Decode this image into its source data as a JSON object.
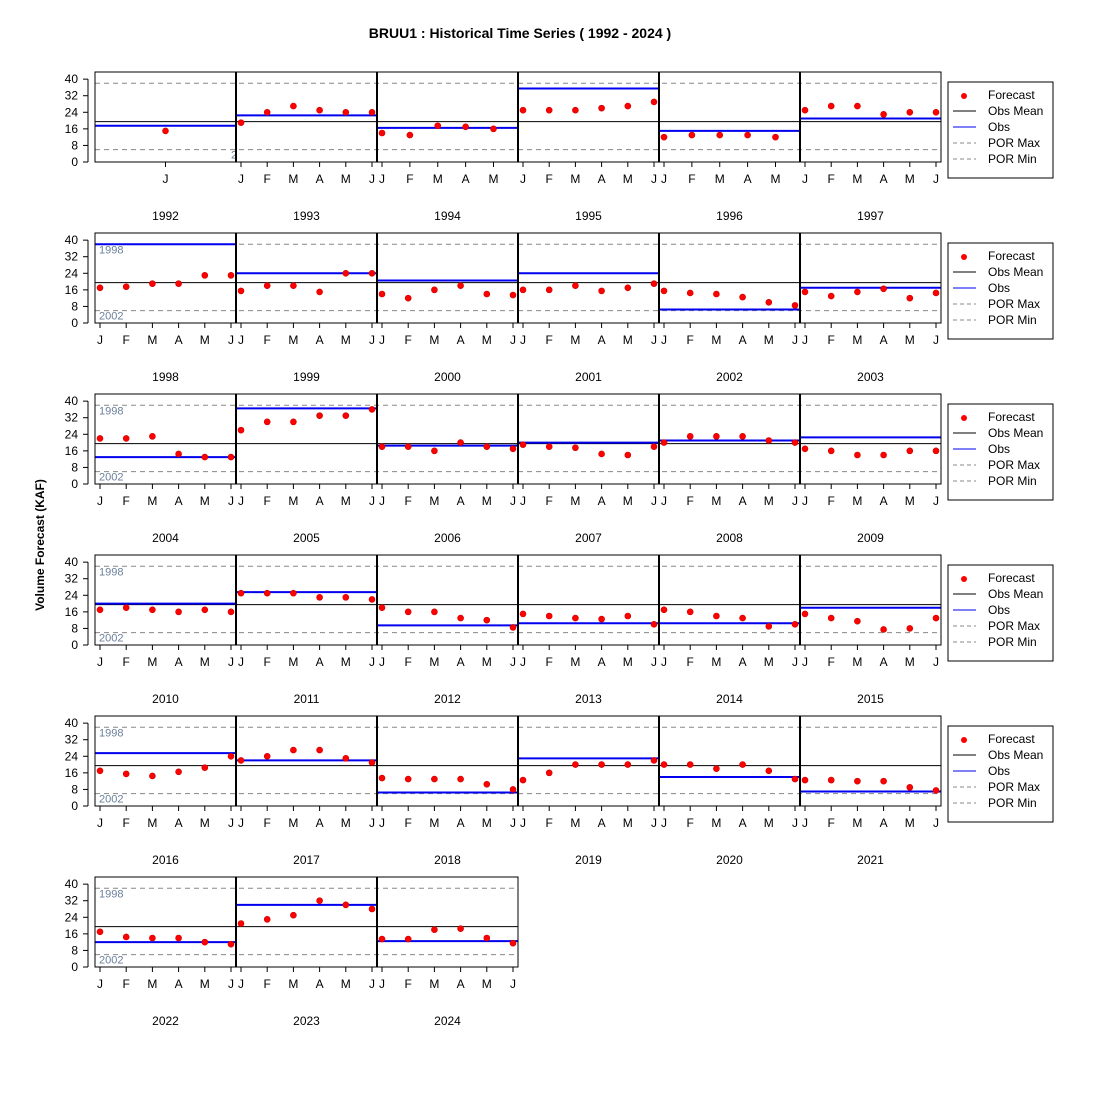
{
  "chart_data": {
    "type": "scatter",
    "title": "BRUU1 : Historical Time Series ( 1992 - 2024 )",
    "ylabel": "Volume Forecast (KAF)",
    "y_ticks": [
      0,
      8,
      16,
      24,
      32,
      40
    ],
    "ylim": [
      0,
      42
    ],
    "legend": {
      "position": "right",
      "entries": [
        {
          "label": "Forecast",
          "style": "red point"
        },
        {
          "label": "Obs Mean",
          "style": "black line"
        },
        {
          "label": "Obs",
          "style": "blue line"
        },
        {
          "label": "POR Max",
          "style": "gray dashed"
        },
        {
          "label": "POR Min",
          "style": "gray dashed"
        }
      ]
    },
    "colors": {
      "forecast": "#ff0000",
      "obs": "#0000ee",
      "obs_mean": "#000000",
      "por": "#888888",
      "ref_label": "#6a7f9a"
    },
    "obs_mean": 19.5,
    "por_max": 38,
    "por_min": 6,
    "por_max_year_label": "1998",
    "por_min_year_label": "2002",
    "por_min_stub_label": "2",
    "years": [
      {
        "year": "1992",
        "months": [
          "J"
        ],
        "forecast": [
          15
        ],
        "obs": 17.5
      },
      {
        "year": "1993",
        "months": [
          "J",
          "F",
          "M",
          "A",
          "M",
          "J"
        ],
        "forecast": [
          19,
          24,
          27,
          25,
          24,
          24
        ],
        "obs": 22.5
      },
      {
        "year": "1994",
        "months": [
          "J",
          "F",
          "M",
          "A",
          "M"
        ],
        "forecast": [
          14,
          13,
          17.5,
          17,
          16
        ],
        "obs": 16.5
      },
      {
        "year": "1995",
        "months": [
          "J",
          "F",
          "M",
          "A",
          "M",
          "J"
        ],
        "forecast": [
          25,
          25,
          25,
          26,
          27,
          29
        ],
        "obs": 35.5
      },
      {
        "year": "1996",
        "months": [
          "J",
          "F",
          "M",
          "A",
          "M"
        ],
        "forecast": [
          12,
          13,
          13,
          13,
          12
        ],
        "obs": 15
      },
      {
        "year": "1997",
        "months": [
          "J",
          "F",
          "M",
          "A",
          "M",
          "J"
        ],
        "forecast": [
          25,
          27,
          27,
          23,
          24,
          24
        ],
        "obs": 21
      },
      {
        "year": "1998",
        "months": [
          "J",
          "F",
          "M",
          "A",
          "M",
          "J"
        ],
        "forecast": [
          17,
          17.5,
          19,
          19,
          23,
          23
        ],
        "obs": 38
      },
      {
        "year": "1999",
        "months": [
          "J",
          "F",
          "M",
          "A",
          "M",
          "J"
        ],
        "forecast": [
          15.5,
          18,
          18,
          15,
          24,
          24
        ],
        "obs": 24
      },
      {
        "year": "2000",
        "months": [
          "J",
          "F",
          "M",
          "A",
          "M",
          "J"
        ],
        "forecast": [
          14,
          12,
          16,
          18,
          14,
          13.5
        ],
        "obs": 20.5
      },
      {
        "year": "2001",
        "months": [
          "J",
          "F",
          "M",
          "A",
          "M",
          "J"
        ],
        "forecast": [
          16,
          16,
          18,
          15.5,
          17,
          19
        ],
        "obs": 24
      },
      {
        "year": "2002",
        "months": [
          "J",
          "F",
          "M",
          "A",
          "M",
          "J"
        ],
        "forecast": [
          15.5,
          14.5,
          14,
          12.5,
          10,
          8.5
        ],
        "obs": 6.5
      },
      {
        "year": "2003",
        "months": [
          "J",
          "F",
          "M",
          "A",
          "M",
          "J"
        ],
        "forecast": [
          15,
          13,
          15,
          16.5,
          12,
          14.5
        ],
        "obs": 17
      },
      {
        "year": "2004",
        "months": [
          "J",
          "F",
          "M",
          "A",
          "M",
          "J"
        ],
        "forecast": [
          22,
          22,
          23,
          14.5,
          13,
          13
        ],
        "obs": 13
      },
      {
        "year": "2005",
        "months": [
          "J",
          "F",
          "M",
          "A",
          "M",
          "J"
        ],
        "forecast": [
          26,
          30,
          30,
          33,
          33,
          36
        ],
        "obs": 36.5
      },
      {
        "year": "2006",
        "months": [
          "J",
          "F",
          "M",
          "A",
          "M",
          "J"
        ],
        "forecast": [
          18,
          18,
          16,
          20,
          18,
          17
        ],
        "obs": 18.5
      },
      {
        "year": "2007",
        "months": [
          "J",
          "F",
          "M",
          "A",
          "M",
          "J"
        ],
        "forecast": [
          19,
          18,
          17.5,
          14.5,
          14,
          18
        ],
        "obs": 20
      },
      {
        "year": "2008",
        "months": [
          "J",
          "F",
          "M",
          "A",
          "M",
          "J"
        ],
        "forecast": [
          20,
          23,
          23,
          23,
          21,
          20
        ],
        "obs": 21
      },
      {
        "year": "2009",
        "months": [
          "J",
          "F",
          "M",
          "A",
          "M",
          "J"
        ],
        "forecast": [
          17,
          16,
          14,
          14,
          16,
          16
        ],
        "obs": 22.5
      },
      {
        "year": "2010",
        "months": [
          "J",
          "F",
          "M",
          "A",
          "M",
          "J"
        ],
        "forecast": [
          17,
          18,
          17,
          16,
          17,
          16
        ],
        "obs": 20
      },
      {
        "year": "2011",
        "months": [
          "J",
          "F",
          "M",
          "A",
          "M",
          "J"
        ],
        "forecast": [
          25,
          25,
          25,
          23,
          23,
          22
        ],
        "obs": 25.5
      },
      {
        "year": "2012",
        "months": [
          "J",
          "F",
          "M",
          "A",
          "M",
          "J"
        ],
        "forecast": [
          18,
          16,
          16,
          13,
          12,
          8.5
        ],
        "obs": 9.5
      },
      {
        "year": "2013",
        "months": [
          "J",
          "F",
          "M",
          "A",
          "M",
          "J"
        ],
        "forecast": [
          15,
          14,
          13,
          12.5,
          14,
          10
        ],
        "obs": 10.5
      },
      {
        "year": "2014",
        "months": [
          "J",
          "F",
          "M",
          "A",
          "M",
          "J"
        ],
        "forecast": [
          17,
          16,
          14,
          13,
          9,
          10
        ],
        "obs": 10.5
      },
      {
        "year": "2015",
        "months": [
          "J",
          "F",
          "M",
          "A",
          "M",
          "J"
        ],
        "forecast": [
          15,
          13,
          11.5,
          7.5,
          8,
          13
        ],
        "obs": 18
      },
      {
        "year": "2016",
        "months": [
          "J",
          "F",
          "M",
          "A",
          "M",
          "J"
        ],
        "forecast": [
          17,
          15.5,
          14.5,
          16.5,
          18.5,
          24
        ],
        "obs": 25.5
      },
      {
        "year": "2017",
        "months": [
          "J",
          "F",
          "M",
          "A",
          "M",
          "J"
        ],
        "forecast": [
          22,
          24,
          27,
          27,
          23,
          21
        ],
        "obs": 22
      },
      {
        "year": "2018",
        "months": [
          "J",
          "F",
          "M",
          "A",
          "M",
          "J"
        ],
        "forecast": [
          13.5,
          13,
          13,
          13,
          10.5,
          8
        ],
        "obs": 6.5
      },
      {
        "year": "2019",
        "months": [
          "J",
          "F",
          "M",
          "A",
          "M",
          "J"
        ],
        "forecast": [
          12.5,
          16,
          20,
          20,
          20,
          22
        ],
        "obs": 23
      },
      {
        "year": "2020",
        "months": [
          "J",
          "F",
          "M",
          "A",
          "M",
          "J"
        ],
        "forecast": [
          20,
          20,
          18,
          20,
          17,
          13
        ],
        "obs": 14
      },
      {
        "year": "2021",
        "months": [
          "J",
          "F",
          "M",
          "A",
          "M",
          "J"
        ],
        "forecast": [
          12.5,
          12.5,
          12,
          12,
          9,
          7.5
        ],
        "obs": 7
      },
      {
        "year": "2022",
        "months": [
          "J",
          "F",
          "M",
          "A",
          "M",
          "J"
        ],
        "forecast": [
          17,
          14.5,
          14,
          14,
          12,
          11
        ],
        "obs": 12
      },
      {
        "year": "2023",
        "months": [
          "J",
          "F",
          "M",
          "A",
          "M",
          "J"
        ],
        "forecast": [
          21,
          23,
          25,
          32,
          30,
          28
        ],
        "obs": 30
      },
      {
        "year": "2024",
        "months": [
          "J",
          "F",
          "M",
          "A",
          "M",
          "J"
        ],
        "forecast": [
          13.5,
          13.5,
          18,
          18.5,
          14,
          11.5
        ],
        "obs": 12.5
      }
    ]
  }
}
